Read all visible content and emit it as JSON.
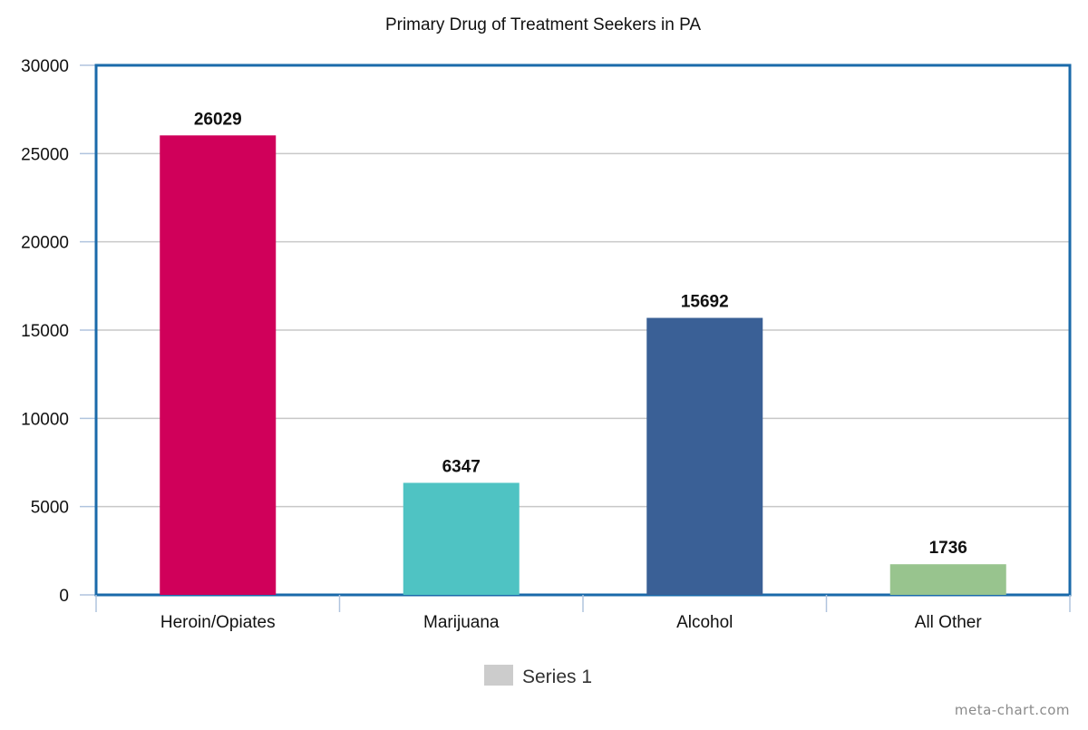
{
  "chart_data": {
    "type": "bar",
    "title": "Primary Drug of Treatment Seekers in PA",
    "categories": [
      "Heroin/Opiates",
      "Marijuana",
      "Alcohol",
      "All Other"
    ],
    "series": [
      {
        "name": "Series 1",
        "values": [
          26029,
          6347,
          15692,
          1736
        ],
        "colors": [
          "#d0005a",
          "#4fc3c3",
          "#3a6096",
          "#98c48e"
        ],
        "data_labels": [
          "26029",
          "6347",
          "15692",
          "1736"
        ]
      }
    ],
    "ylim": [
      0,
      30000
    ],
    "yticks": [
      0,
      5000,
      10000,
      15000,
      20000,
      25000,
      30000
    ],
    "ytick_labels": [
      "0",
      "5000",
      "10000",
      "15000",
      "20000",
      "25000",
      "30000"
    ],
    "grid": true,
    "legend": {
      "position": "bottom-center",
      "label": "Series 1",
      "swatch_color": "#cccccc"
    },
    "colors": {
      "plot_border": "#1a6aaa",
      "gridline": "#c8c8c8",
      "axis": "#b0c4de"
    }
  },
  "watermark": "meta-chart.com"
}
